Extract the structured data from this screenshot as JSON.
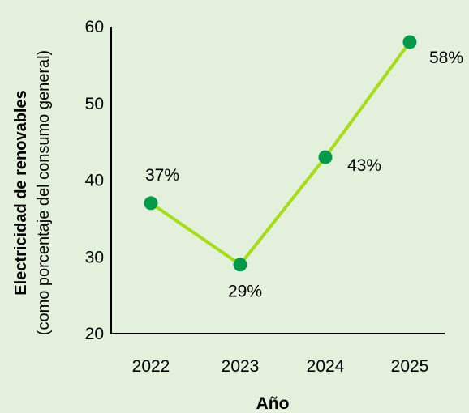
{
  "chart_data": {
    "type": "line",
    "x": [
      "2022",
      "2023",
      "2024",
      "2025"
    ],
    "values": [
      37,
      29,
      43,
      58
    ],
    "data_labels": [
      "37%",
      "29%",
      "43%",
      "58%"
    ],
    "ylim": [
      20,
      60
    ],
    "yticks": [
      20,
      30,
      40,
      50,
      60
    ],
    "xlabel": "Año",
    "ylabel": "Electricidad de renovables",
    "ylabel_sub": "(como porcentaje del consumo general)",
    "grid": false,
    "colors": {
      "background": "#e3f1dc",
      "line": "#a6dc19",
      "marker": "#009a49",
      "axis": "#000000"
    }
  }
}
